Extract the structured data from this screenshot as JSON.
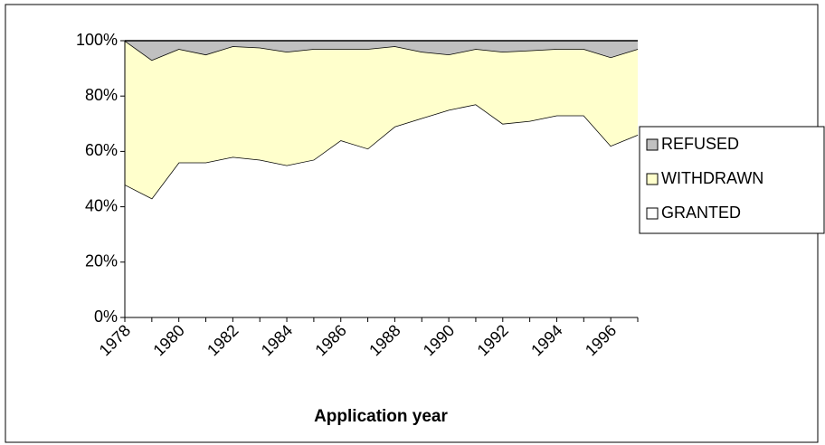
{
  "chart_data": {
    "type": "stacked_area",
    "x_label": "Application year",
    "categories": [
      "1978",
      null,
      "1980",
      null,
      "1982",
      null,
      "1984",
      null,
      "1986",
      null,
      "1988",
      null,
      "1990",
      null,
      "1992",
      null,
      "1994",
      null,
      "1996",
      null
    ],
    "series": [
      {
        "name": "GRANTED",
        "color": "#ffffff",
        "values": [
          48,
          43,
          56,
          56,
          58,
          57,
          55,
          57,
          64,
          61,
          69,
          72,
          75,
          77,
          70,
          71,
          73,
          73,
          62,
          66
        ]
      },
      {
        "name": "WITHDRAWN",
        "color": "#ffffcc",
        "values": [
          52,
          50,
          41,
          39,
          40,
          40.5,
          41,
          40,
          33,
          36,
          29,
          24,
          20,
          20,
          26,
          25.5,
          24,
          24,
          32,
          31
        ]
      },
      {
        "name": "REFUSED",
        "color": "#c0c0c0",
        "values": [
          0,
          7,
          3,
          5,
          2,
          2.5,
          4,
          3,
          3,
          3,
          2,
          4,
          5,
          3,
          4,
          3.5,
          3,
          3,
          6,
          3
        ]
      }
    ],
    "ylim": [
      0,
      100
    ],
    "yticks": [
      {
        "value": 0,
        "label": "0%"
      },
      {
        "value": 20,
        "label": "20%"
      },
      {
        "value": 40,
        "label": "40%"
      },
      {
        "value": 60,
        "label": "60%"
      },
      {
        "value": 80,
        "label": "80%"
      },
      {
        "value": 100,
        "label": "100%"
      }
    ],
    "legend": "right"
  }
}
